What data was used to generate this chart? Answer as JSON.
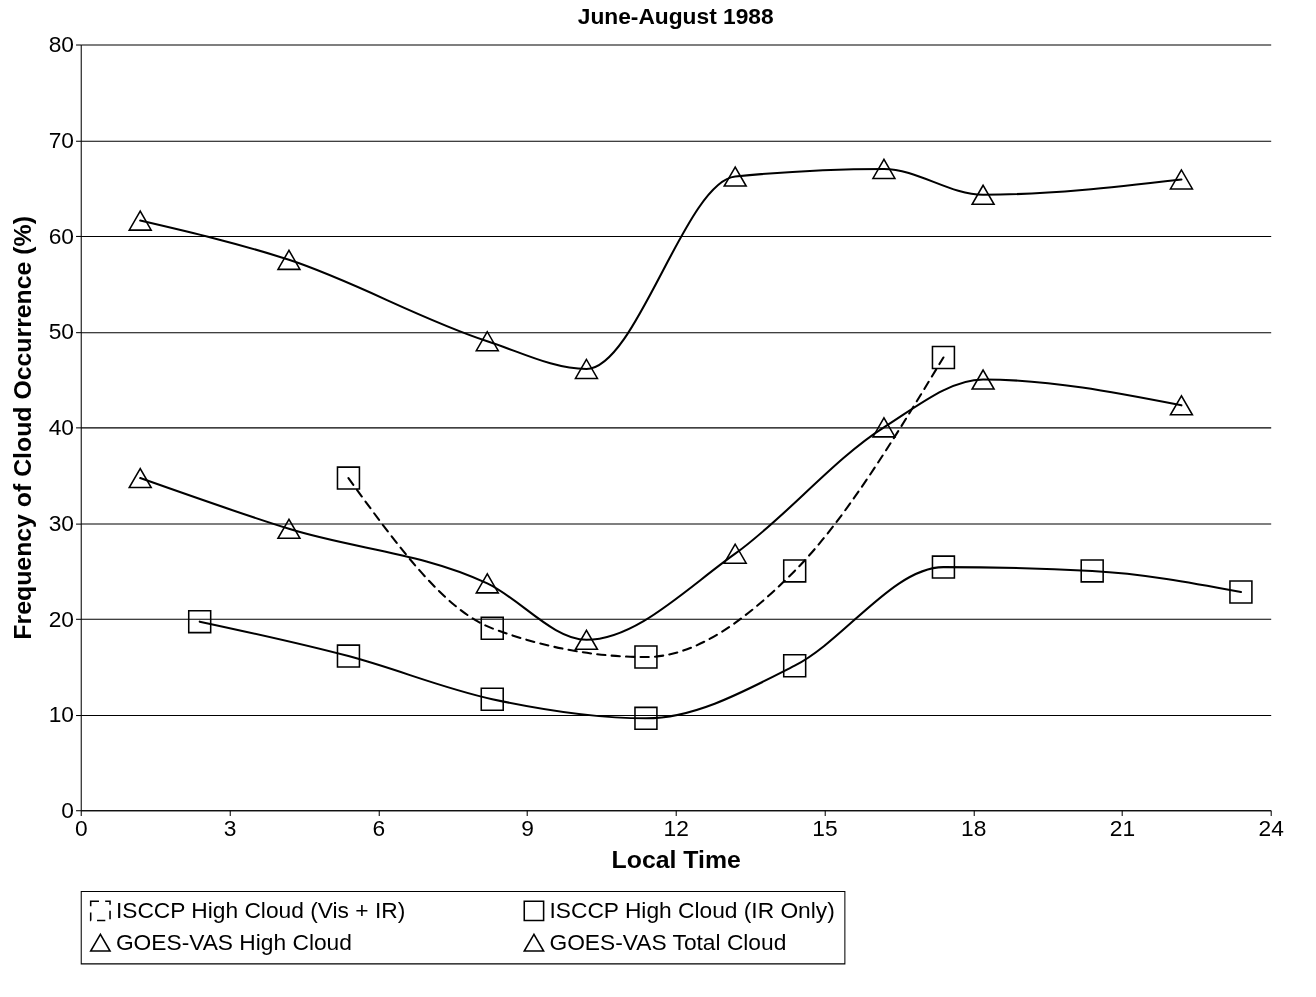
{
  "chart_data": {
    "type": "line",
    "title": "June-August 1988",
    "xlabel": "Local Time",
    "ylabel": "Frequency of Cloud Occurrence (%)",
    "xlim": [
      0,
      24
    ],
    "xticks": [
      0,
      3,
      6,
      9,
      12,
      15,
      18,
      21,
      24
    ],
    "ylim": [
      0,
      80
    ],
    "yticks": [
      0,
      10,
      20,
      30,
      40,
      50,
      60,
      70,
      80
    ],
    "grid": "y",
    "legend": "bottom",
    "series": [
      {
        "name": "ISCCP High Cloud (Vis + IR)",
        "color": "#000000",
        "line_style": "dashed",
        "marker": "square",
        "x": [
          5.4,
          8.3,
          11.4,
          14.4,
          17.4
        ],
        "values": [
          34.7,
          19,
          16,
          25,
          47.3
        ]
      },
      {
        "name": "ISCCP High Cloud (IR Only)",
        "color": "#000000",
        "line_style": "solid",
        "marker": "square",
        "x": [
          2.4,
          5.4,
          8.3,
          11.4,
          14.4,
          17.4,
          20.4,
          23.4
        ],
        "values": [
          19.7,
          16.1,
          11.6,
          9.6,
          15.1,
          25.4,
          25,
          22.8
        ]
      },
      {
        "name": "GOES-VAS High Cloud",
        "color": "#000000",
        "line_style": "solid",
        "marker": "triangle",
        "x": [
          1.2,
          4.2,
          8.2,
          10.2,
          13.2,
          16.2,
          18.2,
          22.2
        ],
        "values": [
          34.7,
          29.4,
          23.7,
          17.8,
          26.8,
          40,
          45,
          42.3
        ]
      },
      {
        "name": "GOES-VAS Total Cloud",
        "color": "#000000",
        "line_style": "solid",
        "marker": "triangle",
        "x": [
          1.2,
          4.2,
          8.2,
          10.2,
          13.2,
          16.2,
          18.2,
          22.2
        ],
        "values": [
          61.6,
          57.5,
          49,
          46.1,
          66.2,
          67,
          64.3,
          65.9
        ]
      }
    ]
  }
}
